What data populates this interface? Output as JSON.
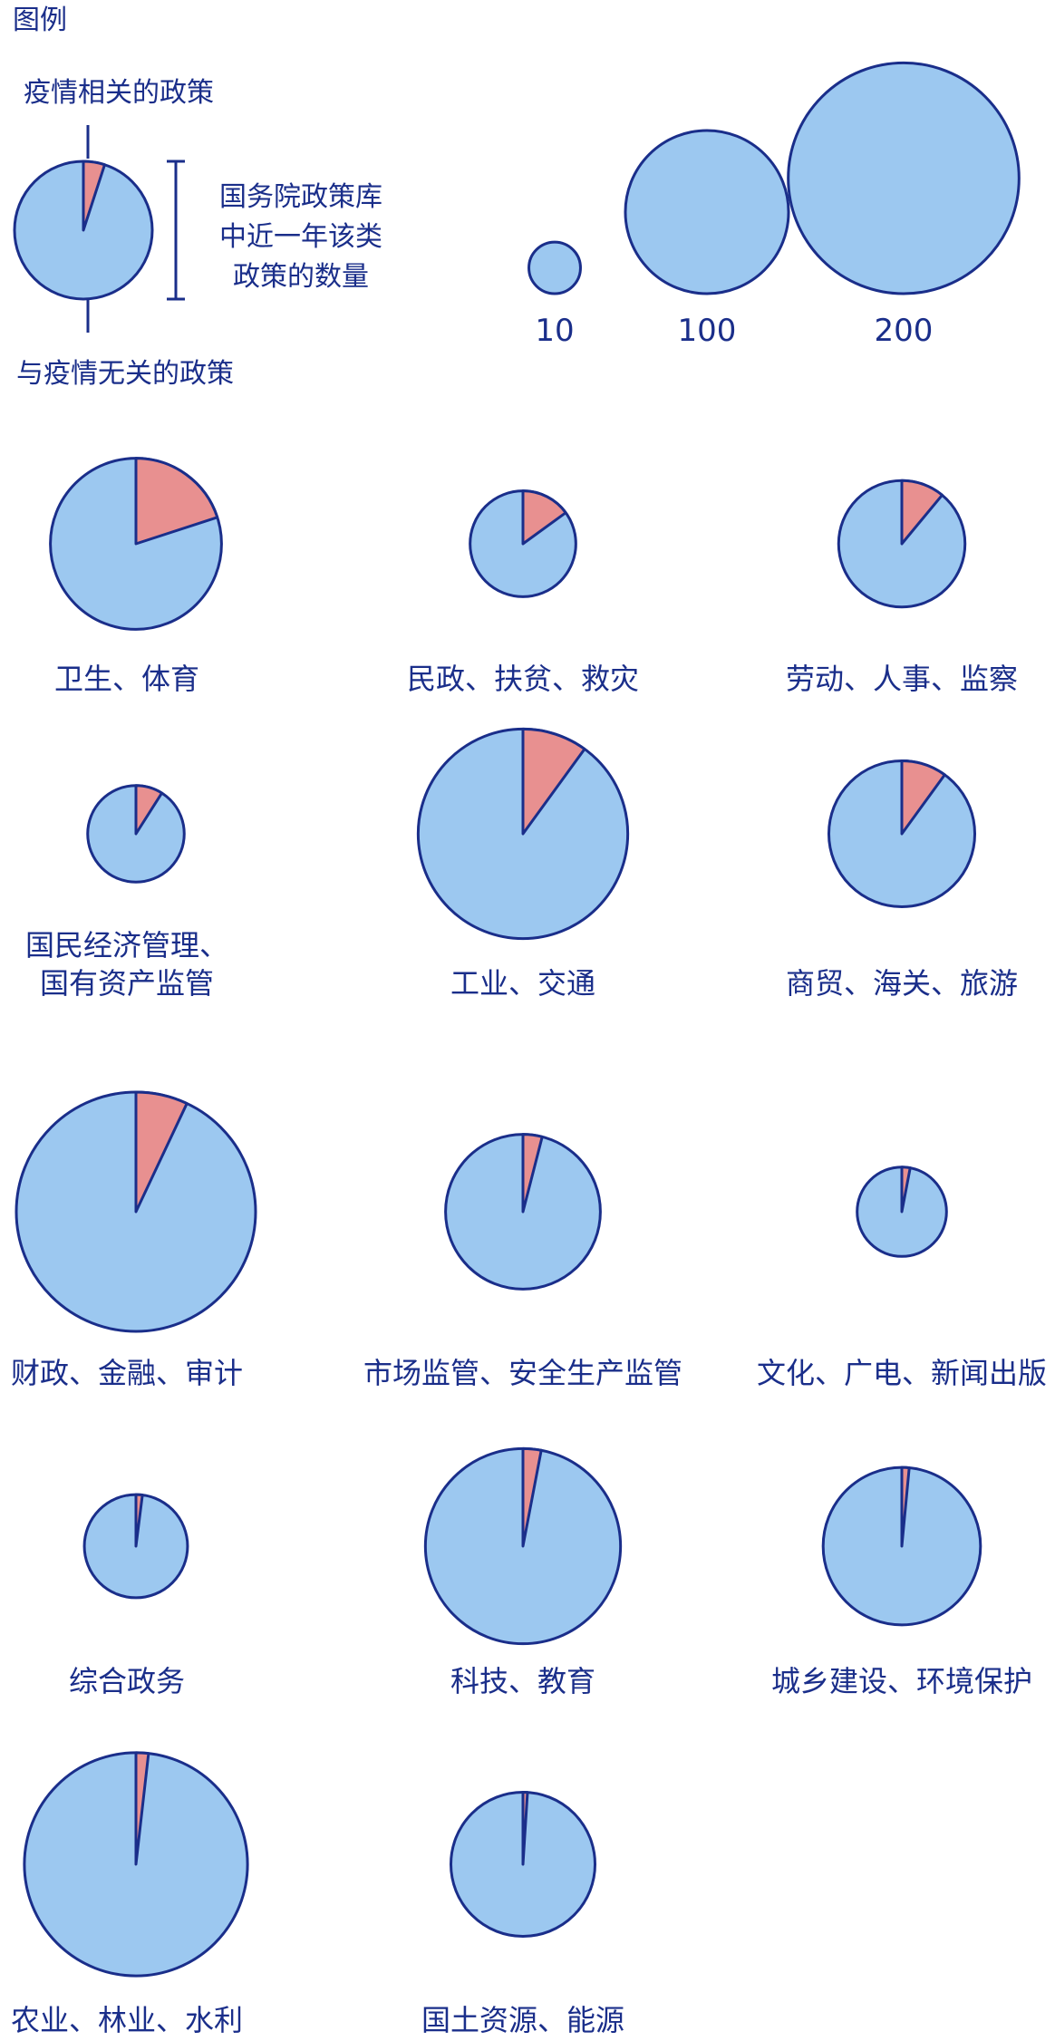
{
  "chart_data": {
    "type": "pie",
    "colors": {
      "pandemic": "#e89090",
      "other": "#9cc8f0",
      "stroke": "#1a2e8a",
      "text": "#1a2e8a"
    },
    "legend": {
      "title": "图例",
      "top_label": "疫情相关的政策",
      "bottom_label": "与疫情无关的政策",
      "bracket_label": [
        "国务院政策库",
        "中近一年该类",
        "政策的数量"
      ],
      "example_fraction": 0.05,
      "size_values": [
        10,
        100,
        200
      ],
      "size_labels": [
        "10",
        "100",
        "200"
      ]
    },
    "categories": [
      {
        "label": [
          "卫生、体育"
        ],
        "total": 110,
        "pandemic_fraction": 0.2
      },
      {
        "label": [
          "民政、扶贫、救灾"
        ],
        "total": 42,
        "pandemic_fraction": 0.15
      },
      {
        "label": [
          "劳动、人事、监察"
        ],
        "total": 60,
        "pandemic_fraction": 0.11
      },
      {
        "label": [
          "国民经济管理、",
          "国有资产监管"
        ],
        "total": 35,
        "pandemic_fraction": 0.09
      },
      {
        "label": [
          "工业、交通"
        ],
        "total": 165,
        "pandemic_fraction": 0.1
      },
      {
        "label": [
          "商贸、海关、旅游"
        ],
        "total": 80,
        "pandemic_fraction": 0.1
      },
      {
        "label": [
          "财政、金融、审计"
        ],
        "total": 215,
        "pandemic_fraction": 0.07
      },
      {
        "label": [
          "市场监管、安全生产监管"
        ],
        "total": 90,
        "pandemic_fraction": 0.04
      },
      {
        "label": [
          "文化、广电、新闻出版"
        ],
        "total": 30,
        "pandemic_fraction": 0.03
      },
      {
        "label": [
          "综合政务"
        ],
        "total": 40,
        "pandemic_fraction": 0.02
      },
      {
        "label": [
          "科技、教育"
        ],
        "total": 143,
        "pandemic_fraction": 0.03
      },
      {
        "label": [
          "城乡建设、环境保护"
        ],
        "total": 93,
        "pandemic_fraction": 0.015
      },
      {
        "label": [
          "农业、林业、水利"
        ],
        "total": 187,
        "pandemic_fraction": 0.018
      },
      {
        "label": [
          "国土资源、能源"
        ],
        "total": 78,
        "pandemic_fraction": 0.01
      }
    ]
  }
}
